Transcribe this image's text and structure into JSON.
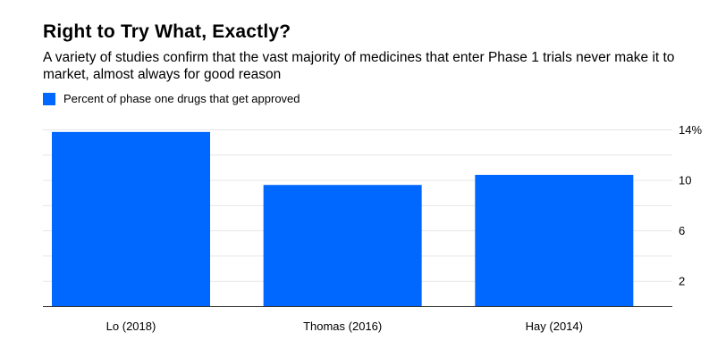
{
  "colors": {
    "bar": "#0068ff",
    "grid": "#e6e6e6",
    "axis": "#333333"
  },
  "chart_data": {
    "type": "bar",
    "title": "Right to Try What, Exactly?",
    "subtitle": "A variety of studies confirm that the vast majority of medicines that enter Phase 1 trials never make it to market, almost always for good reason",
    "legend": [
      "Percent of phase one drugs that get approved"
    ],
    "categories": [
      "Lo (2018)",
      "Thomas (2016)",
      "Hay (2014)"
    ],
    "series": [
      {
        "name": "Percent of phase one drugs that get approved",
        "values": [
          13.8,
          9.6,
          10.4
        ]
      }
    ],
    "ylim": [
      0,
      14
    ],
    "yticks": [
      {
        "value": 14,
        "label": "14%"
      },
      {
        "value": 10,
        "label": "10"
      },
      {
        "value": 6,
        "label": "6"
      },
      {
        "value": 2,
        "label": "2"
      }
    ],
    "grid_values": [
      2,
      4,
      6,
      8,
      10,
      12,
      14
    ],
    "xlabel": "",
    "ylabel": "",
    "y_axis_side": "right",
    "legend_position": "top-left"
  }
}
